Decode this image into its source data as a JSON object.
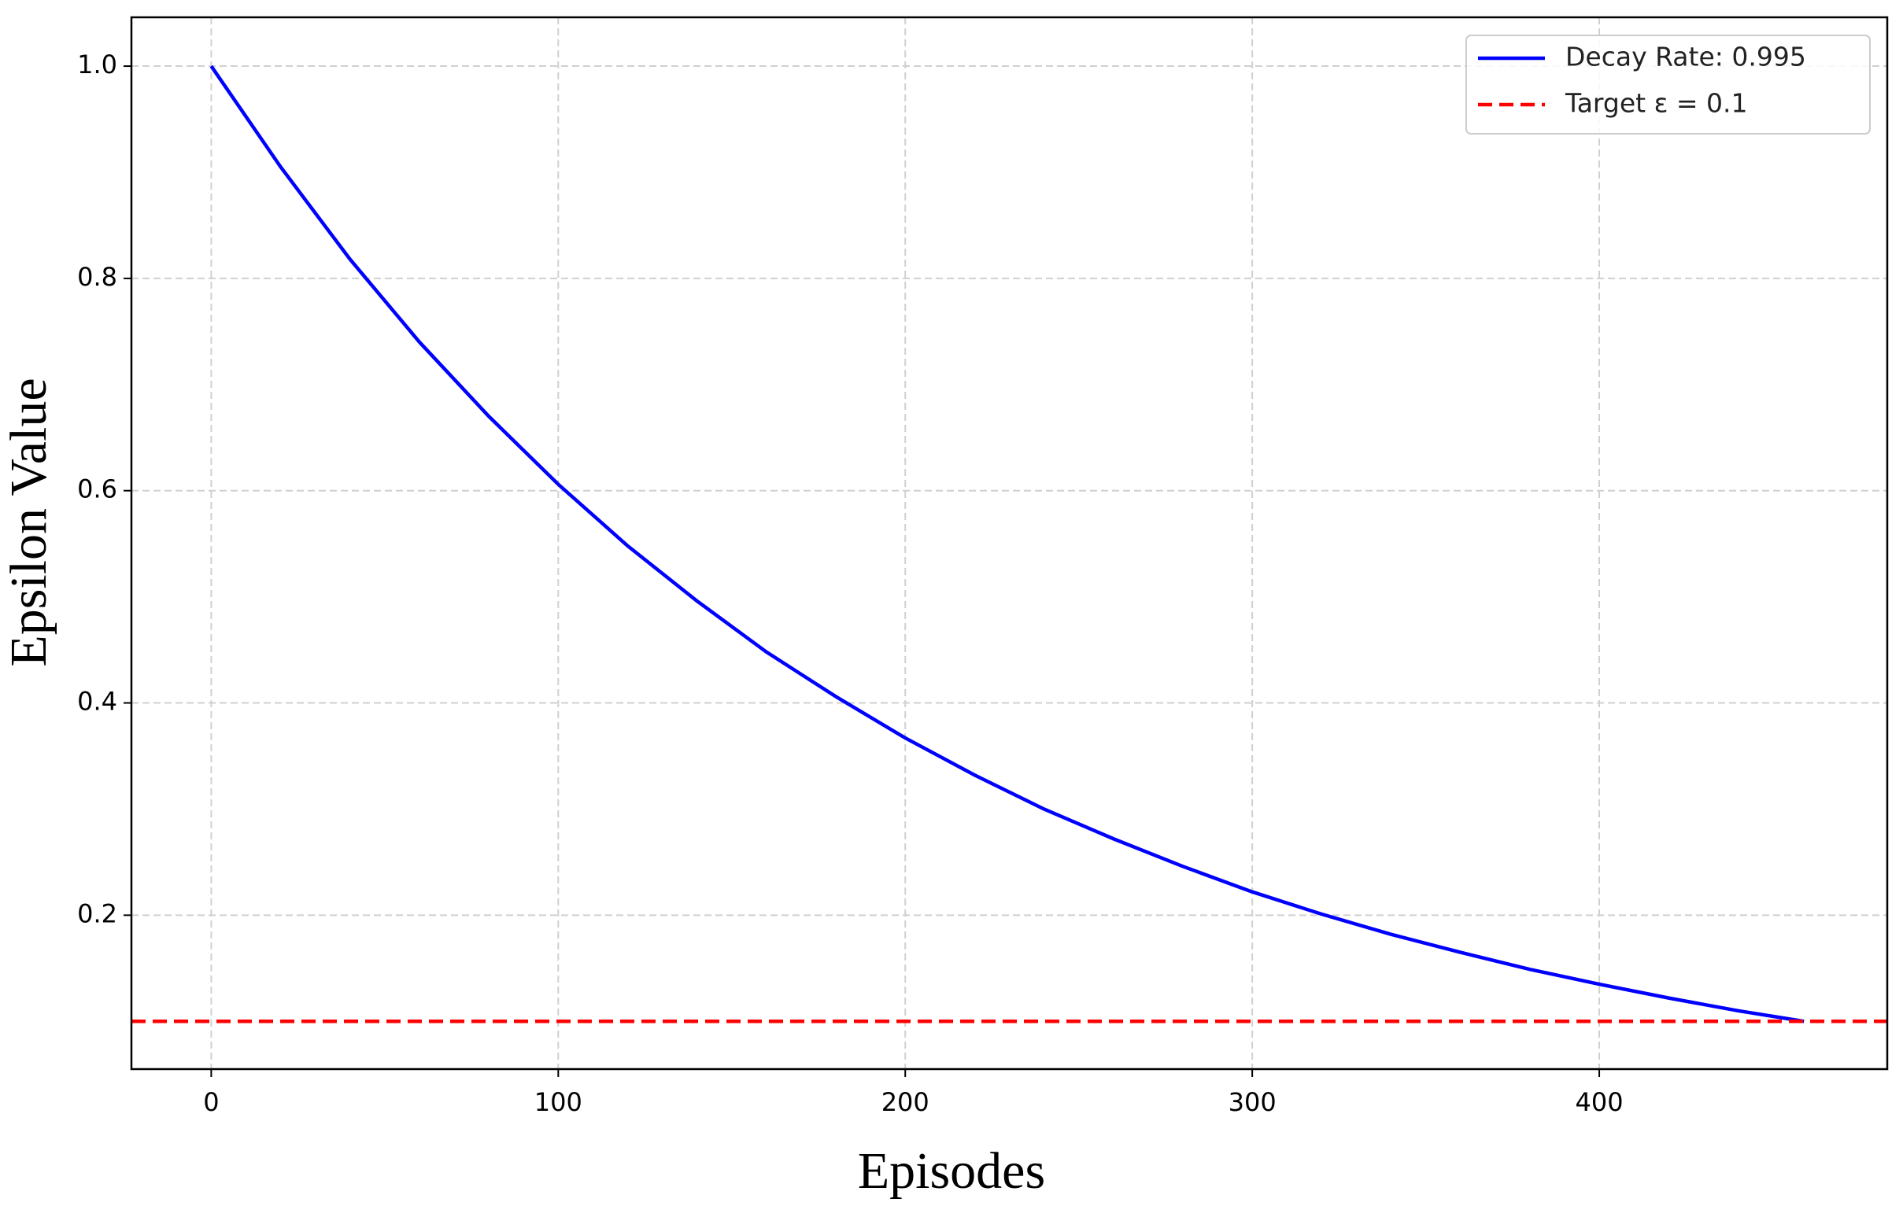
{
  "chart_data": {
    "type": "line",
    "x_label": "Episodes",
    "y_label": "Epsilon Value",
    "x": [
      0,
      20,
      40,
      60,
      80,
      100,
      120,
      140,
      160,
      180,
      200,
      220,
      240,
      260,
      280,
      300,
      320,
      340,
      360,
      380,
      400,
      420,
      440,
      459
    ],
    "series": [
      {
        "name": "Decay Rate: 0.995",
        "color": "#0000ff",
        "style": "solid",
        "values": [
          1.0,
          0.905,
          0.818,
          0.74,
          0.67,
          0.606,
          0.548,
          0.496,
          0.448,
          0.406,
          0.367,
          0.332,
          0.3,
          0.272,
          0.246,
          0.222,
          0.201,
          0.182,
          0.165,
          0.149,
          0.135,
          0.122,
          0.11,
          0.1
        ]
      },
      {
        "name": "Target ε = 0.1",
        "color": "#ff0000",
        "style": "dashed",
        "y": 0.1
      }
    ],
    "xlim": [
      -23,
      483
    ],
    "ylim": [
      0.055,
      1.046
    ],
    "xticks": [
      0,
      100,
      200,
      300,
      400
    ],
    "yticks": [
      0.2,
      0.4,
      0.6,
      0.8,
      {
        "value": 1.0,
        "label": "1.0"
      }
    ],
    "grid": true,
    "legend": "upper right"
  }
}
